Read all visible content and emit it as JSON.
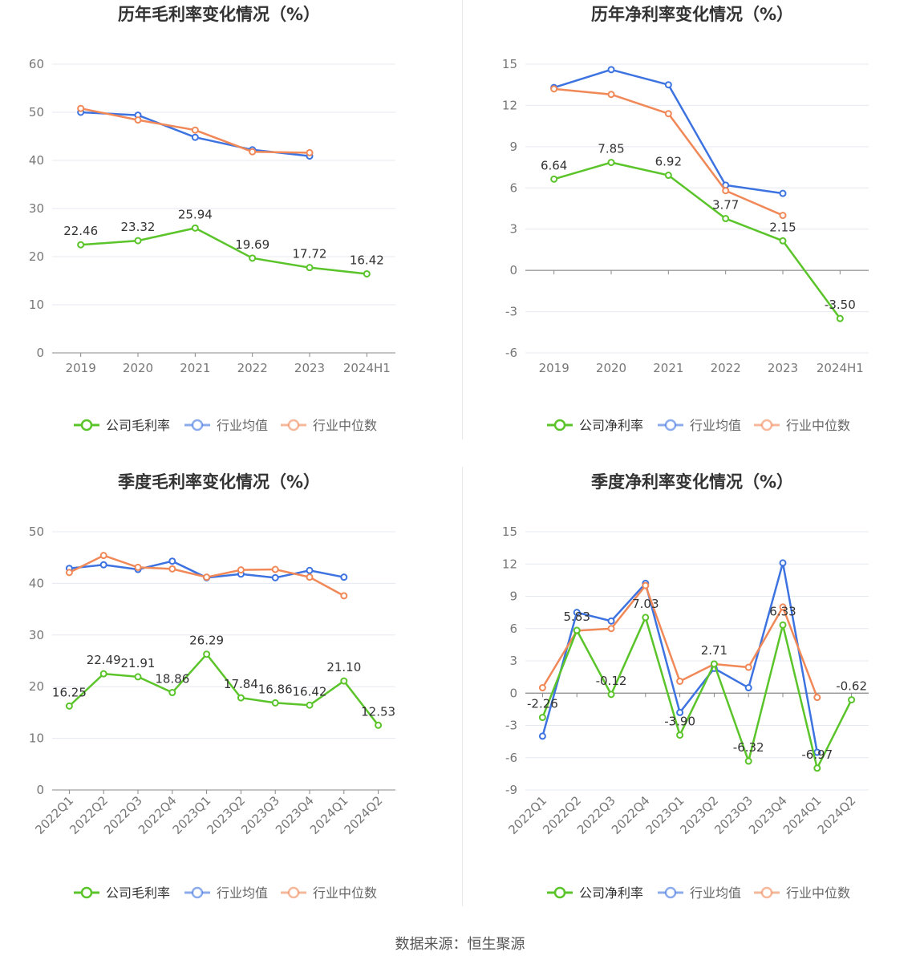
{
  "footer": "数据来源：恒生聚源",
  "colors": {
    "company": "#5ac42a",
    "avg": "#3d73e0",
    "median": "#f08858"
  },
  "chart_data": [
    {
      "type": "line",
      "title": "历年毛利率变化情况（%）",
      "categories": [
        "2019",
        "2020",
        "2021",
        "2022",
        "2023",
        "2024H1"
      ],
      "ylim": [
        0,
        60
      ],
      "yticks": [
        0,
        10,
        20,
        30,
        40,
        50,
        60
      ],
      "xtick_rotation": 0,
      "series": [
        {
          "name": "公司毛利率",
          "values": [
            22.46,
            23.32,
            25.94,
            19.69,
            17.72,
            16.42
          ],
          "labels": [
            "22.46",
            "23.32",
            "25.94",
            "19.69",
            "17.72",
            "16.42"
          ]
        },
        {
          "name": "行业均值",
          "values": [
            50.0,
            49.4,
            44.8,
            42.2,
            40.9,
            null
          ]
        },
        {
          "name": "行业中位数",
          "values": [
            50.8,
            48.4,
            46.3,
            41.8,
            41.6,
            null
          ]
        }
      ]
    },
    {
      "type": "line",
      "title": "历年净利率变化情况（%）",
      "categories": [
        "2019",
        "2020",
        "2021",
        "2022",
        "2023",
        "2024H1"
      ],
      "ylim": [
        -6,
        15
      ],
      "yticks": [
        -6,
        -3,
        0,
        3,
        6,
        9,
        12,
        15
      ],
      "xtick_rotation": 0,
      "series": [
        {
          "name": "公司净利率",
          "values": [
            6.64,
            7.85,
            6.92,
            3.77,
            2.15,
            -3.5
          ],
          "labels": [
            "6.64",
            "7.85",
            "6.92",
            "3.77",
            "2.15",
            "-3.50"
          ]
        },
        {
          "name": "行业均值",
          "values": [
            13.3,
            14.6,
            13.5,
            6.2,
            5.6,
            null
          ]
        },
        {
          "name": "行业中位数",
          "values": [
            13.2,
            12.8,
            11.4,
            5.8,
            4.0,
            null
          ]
        }
      ]
    },
    {
      "type": "line",
      "title": "季度毛利率变化情况（%）",
      "categories": [
        "2022Q1",
        "2022Q2",
        "2022Q3",
        "2022Q4",
        "2023Q1",
        "2023Q2",
        "2023Q3",
        "2023Q4",
        "2024Q1",
        "2024Q2"
      ],
      "ylim": [
        0,
        50
      ],
      "yticks": [
        0,
        10,
        20,
        30,
        40,
        50
      ],
      "xtick_rotation": -45,
      "series": [
        {
          "name": "公司毛利率",
          "values": [
            16.25,
            22.49,
            21.91,
            18.86,
            26.29,
            17.84,
            16.86,
            16.42,
            21.1,
            12.53
          ],
          "labels": [
            "16.25",
            "22.49",
            "21.91",
            "18.86",
            "26.29",
            "17.84",
            "16.86",
            "16.42",
            "21.10",
            "12.53"
          ]
        },
        {
          "name": "行业均值",
          "values": [
            42.9,
            43.6,
            42.7,
            44.3,
            41.1,
            41.8,
            41.1,
            42.5,
            41.2,
            null
          ]
        },
        {
          "name": "行业中位数",
          "values": [
            42.1,
            45.4,
            43.1,
            42.8,
            41.2,
            42.6,
            42.7,
            41.2,
            37.6,
            null
          ]
        }
      ]
    },
    {
      "type": "line",
      "title": "季度净利率变化情况（%）",
      "categories": [
        "2022Q1",
        "2022Q2",
        "2022Q3",
        "2022Q4",
        "2023Q1",
        "2023Q2",
        "2023Q3",
        "2023Q4",
        "2024Q1",
        "2024Q2"
      ],
      "ylim": [
        -9,
        15
      ],
      "yticks": [
        -9,
        -6,
        -3,
        0,
        3,
        6,
        9,
        12,
        15
      ],
      "xtick_rotation": -45,
      "series": [
        {
          "name": "公司净利率",
          "values": [
            -2.26,
            5.83,
            -0.12,
            7.03,
            -3.9,
            2.71,
            -6.32,
            6.33,
            -6.97,
            -0.62
          ],
          "labels": [
            "-2.26",
            "5.83",
            "-0.12",
            "7.03",
            "-3.90",
            "2.71",
            "-6.32",
            "6.33",
            "-6.97",
            "-0.62"
          ]
        },
        {
          "name": "行业均值",
          "values": [
            -4.0,
            7.5,
            6.7,
            10.2,
            -1.8,
            2.3,
            0.5,
            12.1,
            -5.5,
            null
          ]
        },
        {
          "name": "行业中位数",
          "values": [
            0.5,
            5.8,
            6.0,
            10.0,
            1.1,
            2.7,
            2.4,
            8.0,
            -0.4,
            null
          ]
        }
      ]
    }
  ]
}
